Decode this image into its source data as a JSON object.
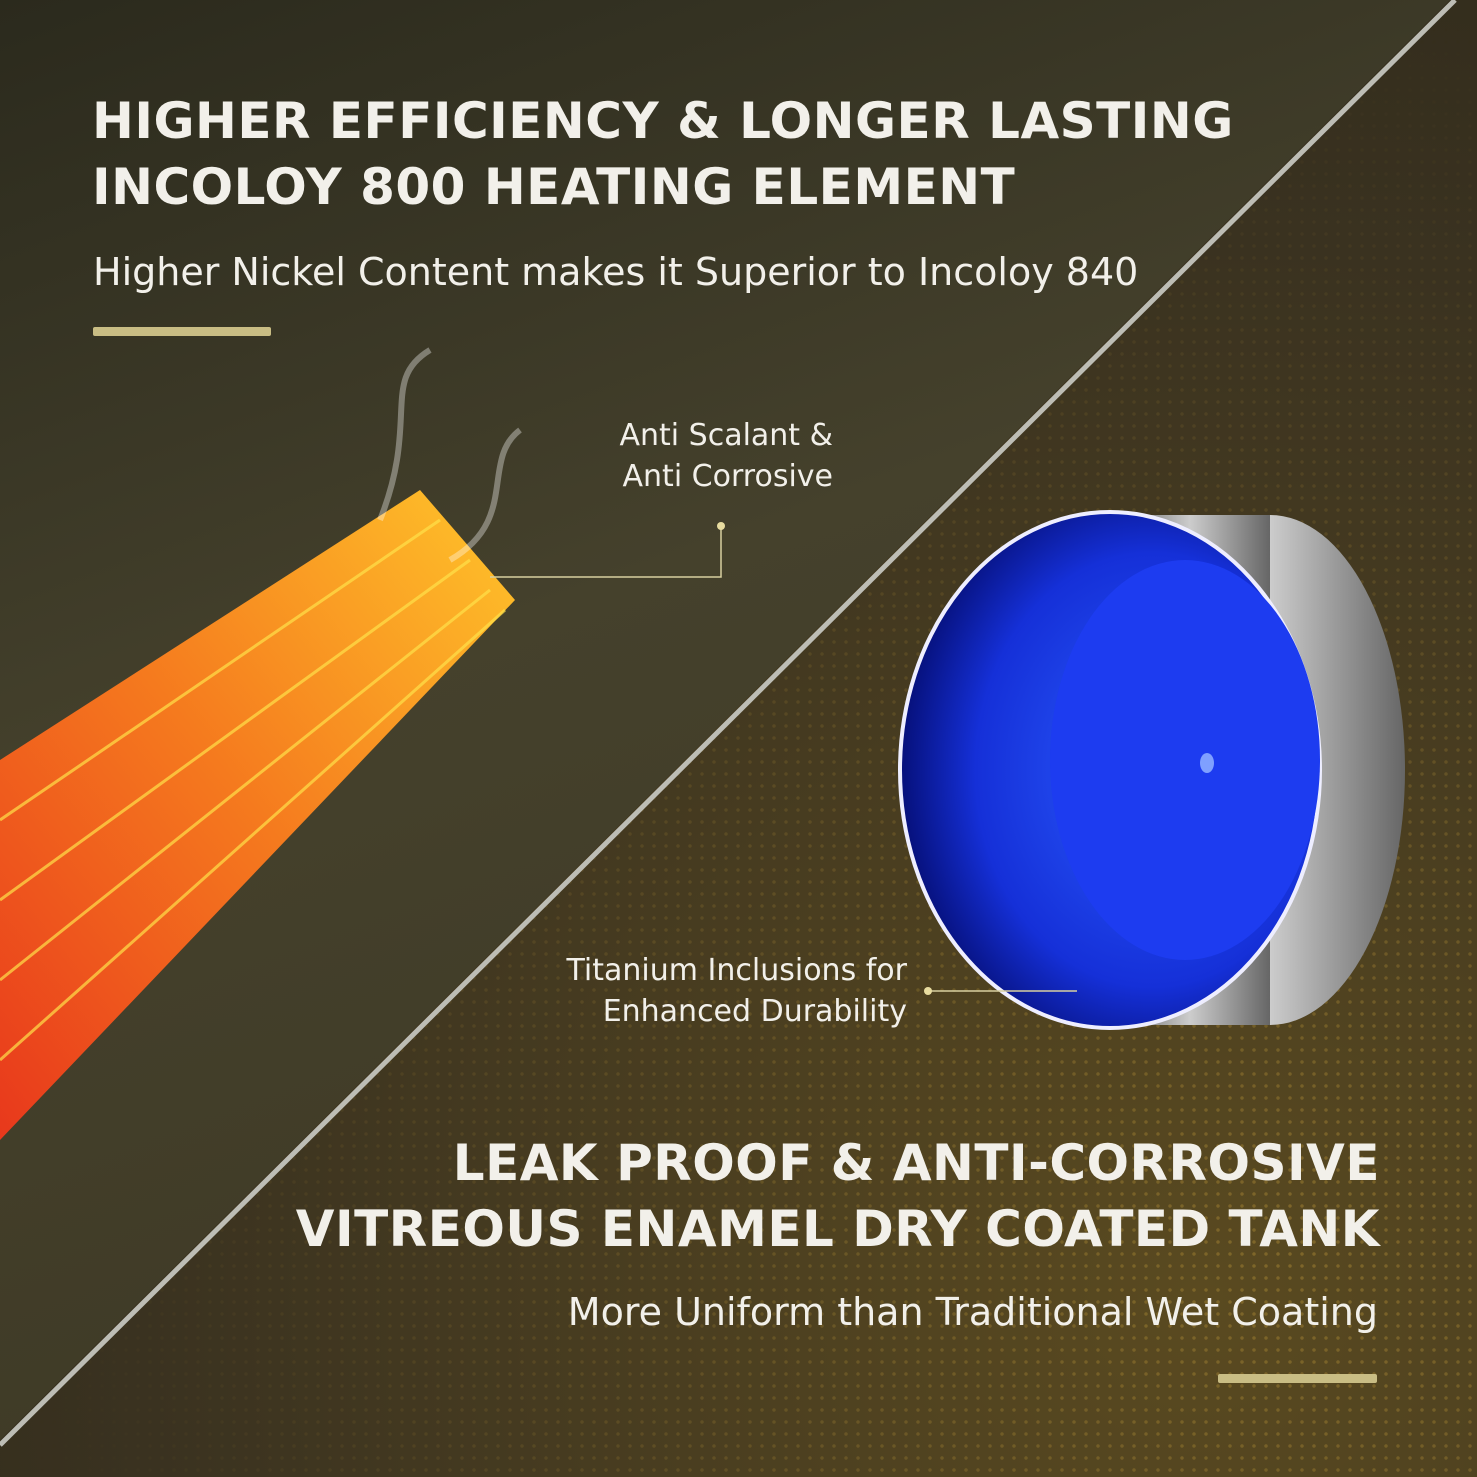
{
  "top": {
    "title_line1": "HIGHER EFFICIENCY & LONGER LASTING",
    "title_line2": "INCOLOY 800 HEATING ELEMENT",
    "subtitle": "Higher Nickel Content makes it Superior to Incoloy 840"
  },
  "callouts": {
    "coating_line1": "Anti Scalant &",
    "coating_line2": "Anti Corrosive",
    "titanium_line1": "Titanium Inclusions for",
    "titanium_line2": "Enhanced Durability"
  },
  "bottom": {
    "title_line1": "LEAK PROOF & ANTI-CORROSIVE",
    "title_line2": "VITREOUS ENAMEL DRY COATED TANK",
    "subtitle": "More Uniform than Traditional Wet Coating"
  },
  "colors": {
    "accent": "#c9bd84",
    "tank_blue": "#1f3ae8",
    "element_orange": "#f5a623"
  }
}
